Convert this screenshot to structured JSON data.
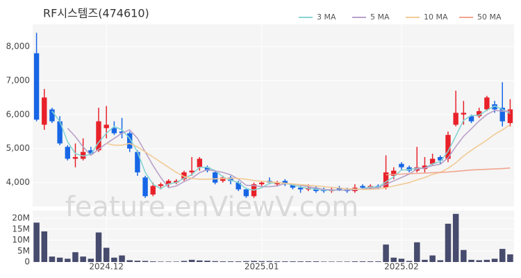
{
  "chart_data": [
    {
      "type": "candlestick",
      "title": "RF시스템즈(474610)",
      "categories": [
        null,
        null,
        null,
        null,
        null,
        null,
        null,
        null,
        null,
        "2024.12",
        null,
        null,
        null,
        null,
        null,
        null,
        null,
        null,
        null,
        null,
        null,
        null,
        null,
        null,
        null,
        null,
        null,
        null,
        null,
        "2025.01",
        null,
        null,
        null,
        null,
        null,
        null,
        null,
        null,
        null,
        null,
        null,
        null,
        null,
        null,
        null,
        null,
        null,
        "2025.02",
        null,
        null,
        null,
        null,
        null,
        null,
        null,
        null,
        null,
        null,
        null,
        null,
        null,
        null
      ],
      "open": [
        7800,
        5700,
        6150,
        5800,
        5050,
        4700,
        4700,
        4950,
        4950,
        5600,
        5600,
        5500,
        5450,
        4900,
        4150,
        3650,
        3900,
        3950,
        4000,
        4100,
        4300,
        4450,
        4450,
        4300,
        4050,
        4150,
        4000,
        3800,
        3600,
        3950,
        4050,
        3950,
        4050,
        3950,
        3850,
        3800,
        3850,
        3800,
        3750,
        3850,
        3800,
        3750,
        3900,
        3850,
        3900,
        3850,
        4200,
        4550,
        4450,
        4350,
        4400,
        4550,
        4750,
        4700,
        5700,
        6000,
        5950,
        5950,
        6150,
        6300,
        6200,
        5750
      ],
      "high": [
        8400,
        6750,
        6200,
        5950,
        5100,
        5150,
        5300,
        5050,
        6200,
        6250,
        5800,
        5900,
        5500,
        4950,
        4200,
        4000,
        4000,
        4100,
        4100,
        4350,
        4750,
        4750,
        4500,
        4350,
        4200,
        4200,
        4050,
        3850,
        4000,
        4050,
        4150,
        4050,
        4100,
        3950,
        3900,
        3950,
        3900,
        3850,
        3850,
        3900,
        3850,
        3950,
        3950,
        3950,
        3950,
        4800,
        4450,
        4600,
        4500,
        5050,
        4750,
        4850,
        4800,
        5500,
        6700,
        6400,
        6000,
        6200,
        6550,
        6400,
        6950,
        6450
      ],
      "low": [
        5800,
        5550,
        5750,
        5100,
        4650,
        4450,
        4650,
        4800,
        4900,
        5300,
        5400,
        5300,
        4900,
        4200,
        3550,
        3600,
        3800,
        3850,
        3950,
        4050,
        4200,
        4350,
        4300,
        3950,
        4000,
        3950,
        3750,
        3550,
        3550,
        3900,
        3950,
        3900,
        3900,
        3800,
        3700,
        3750,
        3700,
        3700,
        3700,
        3750,
        3700,
        3700,
        3800,
        3800,
        3800,
        3800,
        4100,
        4350,
        4300,
        4300,
        4300,
        4500,
        4550,
        4600,
        5650,
        5700,
        5750,
        5900,
        6100,
        6050,
        5650,
        5650
      ],
      "close": [
        5850,
        6500,
        5800,
        5150,
        4700,
        4750,
        4900,
        4850,
        5800,
        5700,
        5450,
        5450,
        5000,
        4300,
        3600,
        3900,
        3950,
        4050,
        4050,
        4300,
        4350,
        4700,
        4350,
        4000,
        4150,
        4050,
        3800,
        3600,
        3950,
        4000,
        4000,
        4000,
        3950,
        3850,
        3800,
        3850,
        3750,
        3750,
        3800,
        3800,
        3750,
        3850,
        3850,
        3900,
        3850,
        4300,
        4350,
        4450,
        4350,
        4450,
        4500,
        4700,
        4650,
        5400,
        6050,
        6050,
        5800,
        6100,
        6500,
        6150,
        5800,
        6150
      ],
      "up_color": "#e8212a",
      "down_color": "#1766e6",
      "series": [
        {
          "name": "3 MA",
          "color": "#86d4d2",
          "values": [
            null,
            null,
            6100,
            5800,
            5200,
            4850,
            4780,
            4830,
            5180,
            5450,
            5650,
            5550,
            5300,
            4900,
            4300,
            3950,
            3820,
            3960,
            4000,
            4130,
            4230,
            4450,
            4450,
            4350,
            4170,
            4070,
            4000,
            3820,
            3780,
            3850,
            3980,
            4000,
            3980,
            3930,
            3870,
            3830,
            3800,
            3780,
            3770,
            3780,
            3780,
            3800,
            3820,
            3870,
            3870,
            4020,
            4170,
            4370,
            4380,
            4420,
            4430,
            4550,
            4620,
            4920,
            5370,
            5830,
            5970,
            5980,
            6130,
            6250,
            6150,
            6030
          ]
        },
        {
          "name": "5 MA",
          "color": "#b8a0c8",
          "values": [
            null,
            null,
            null,
            null,
            5600,
            5350,
            5050,
            4800,
            4980,
            5150,
            5300,
            5450,
            5550,
            5300,
            4900,
            4500,
            4150,
            3850,
            3900,
            4030,
            4130,
            4290,
            4380,
            4340,
            4300,
            4230,
            4100,
            3920,
            3910,
            3880,
            3880,
            3900,
            3980,
            3960,
            3920,
            3880,
            3840,
            3800,
            3790,
            3780,
            3780,
            3790,
            3810,
            3830,
            3850,
            3950,
            4050,
            4150,
            4250,
            4400,
            4430,
            4500,
            4540,
            4730,
            5060,
            5360,
            5580,
            5810,
            6000,
            6120,
            6100,
            6100
          ]
        },
        {
          "name": "10 MA",
          "color": "#f2ca94",
          "values": [
            null,
            null,
            null,
            null,
            null,
            null,
            null,
            null,
            null,
            5150,
            5100,
            5100,
            5150,
            5050,
            4900,
            4750,
            4600,
            4450,
            4300,
            4180,
            4120,
            4100,
            4100,
            4110,
            4120,
            4130,
            4120,
            4100,
            4060,
            4040,
            4020,
            4000,
            3980,
            3960,
            3940,
            3920,
            3900,
            3880,
            3860,
            3840,
            3820,
            3810,
            3800,
            3800,
            3810,
            3850,
            3900,
            3950,
            4000,
            4080,
            4150,
            4240,
            4300,
            4420,
            4580,
            4780,
            4950,
            5100,
            5250,
            5420,
            5550,
            5700
          ]
        },
        {
          "name": "50 MA",
          "color": "#f2a48e",
          "values": [
            null,
            null,
            null,
            null,
            null,
            null,
            null,
            null,
            null,
            null,
            null,
            null,
            null,
            null,
            null,
            null,
            null,
            null,
            null,
            null,
            null,
            null,
            null,
            null,
            null,
            null,
            null,
            null,
            null,
            null,
            null,
            null,
            null,
            null,
            null,
            null,
            null,
            null,
            null,
            null,
            null,
            null,
            null,
            null,
            null,
            4230,
            4240,
            4250,
            4260,
            4270,
            4280,
            4290,
            4300,
            4310,
            4330,
            4350,
            4370,
            4380,
            4390,
            4400,
            4410,
            4430
          ]
        }
      ],
      "ylim": [
        3300,
        8650
      ],
      "yticks": [
        {
          "value": 4000,
          "label": "4,000"
        },
        {
          "value": 5000,
          "label": "5,000"
        },
        {
          "value": 6000,
          "label": "6,000"
        },
        {
          "value": 7000,
          "label": "7,000"
        },
        {
          "value": 8000,
          "label": "8,000"
        }
      ],
      "grid": true,
      "legend": "top-right"
    },
    {
      "type": "bar",
      "color": "#474b6d",
      "values": [
        18000000,
        14000000,
        2500000,
        2000000,
        1500000,
        4500000,
        2500000,
        1500000,
        13500000,
        6500000,
        2000000,
        3000000,
        800000,
        600000,
        500000,
        300000,
        200000,
        200000,
        200000,
        500000,
        1000000,
        700000,
        600000,
        400000,
        300000,
        300000,
        300000,
        400000,
        500000,
        400000,
        400000,
        300000,
        300000,
        300000,
        300000,
        300000,
        300000,
        200000,
        200000,
        200000,
        200000,
        300000,
        300000,
        300000,
        300000,
        8000000,
        2000000,
        1500000,
        500000,
        9000000,
        1000000,
        3000000,
        800000,
        17500000,
        22000000,
        5500000,
        1000000,
        800000,
        1000000,
        1500000,
        6000000,
        3500000
      ],
      "ylim": [
        0,
        23500000
      ],
      "yticks": [
        {
          "value": 0,
          "label": "0"
        },
        {
          "value": 5000000,
          "label": "5M"
        },
        {
          "value": 10000000,
          "label": "10M"
        },
        {
          "value": 15000000,
          "label": "15M"
        },
        {
          "value": 20000000,
          "label": "20M"
        }
      ]
    }
  ],
  "watermark": "feature.enViewV.com"
}
